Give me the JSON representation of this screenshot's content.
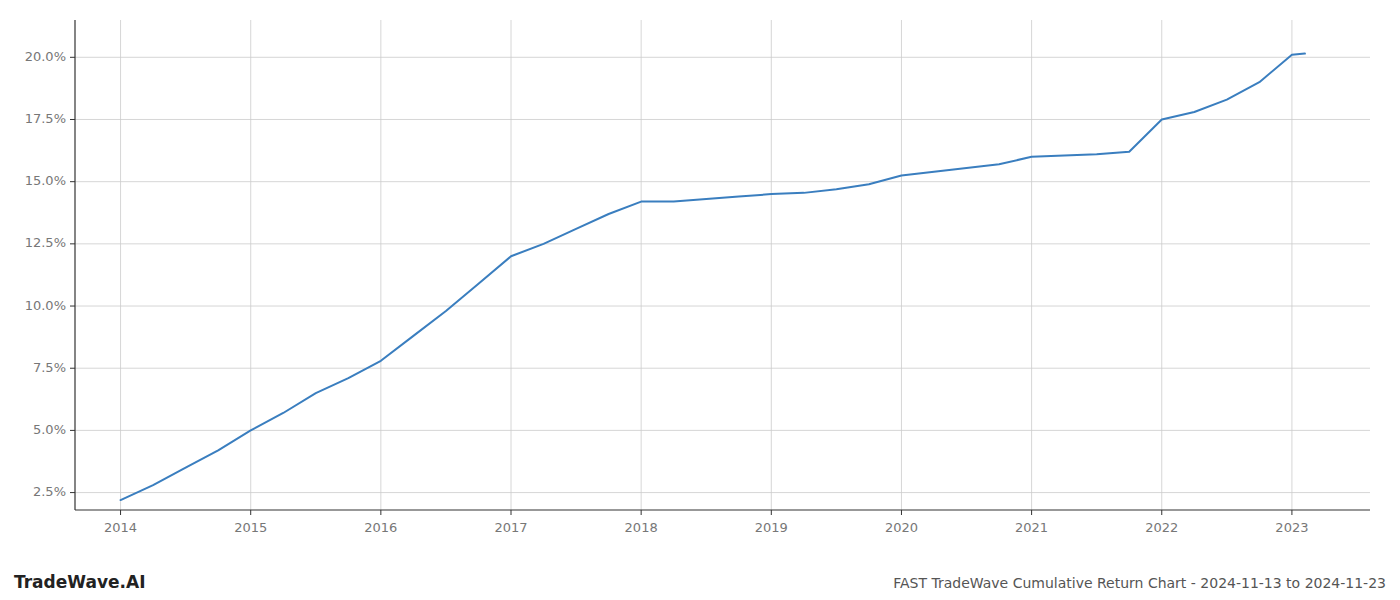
{
  "chart_data": {
    "type": "line",
    "title": "FAST TradeWave Cumulative Return Chart - 2024-11-13 to 2024-11-23",
    "annotations": [
      "TradeWave.AI"
    ],
    "x": [
      2014.0,
      2014.25,
      2014.5,
      2014.75,
      2015.0,
      2015.25,
      2015.5,
      2015.75,
      2016.0,
      2016.25,
      2016.5,
      2016.75,
      2017.0,
      2017.25,
      2017.5,
      2017.75,
      2018.0,
      2018.25,
      2018.5,
      2018.75,
      2019.0,
      2019.25,
      2019.5,
      2019.75,
      2020.0,
      2020.25,
      2020.5,
      2020.75,
      2021.0,
      2021.25,
      2021.5,
      2021.75,
      2022.0,
      2022.25,
      2022.5,
      2022.75,
      2023.0,
      2023.1
    ],
    "values": [
      2.2,
      2.8,
      3.5,
      4.2,
      5.0,
      5.7,
      6.5,
      7.1,
      7.8,
      8.8,
      9.8,
      10.9,
      12.0,
      12.5,
      13.1,
      13.7,
      14.2,
      14.2,
      14.3,
      14.4,
      14.5,
      14.55,
      14.7,
      14.9,
      15.25,
      15.4,
      15.55,
      15.7,
      16.0,
      16.05,
      16.1,
      16.2,
      17.5,
      17.8,
      18.3,
      19.0,
      20.1,
      20.15
    ],
    "color": "#3a7ebf",
    "xlim": [
      2013.65,
      2023.6
    ],
    "xticks": [
      2014,
      2015,
      2016,
      2017,
      2018,
      2019,
      2020,
      2021,
      2022,
      2023
    ],
    "ylim": [
      1.8,
      21.5
    ],
    "yticks": [
      {
        "value": 2.5,
        "label": "2.5%"
      },
      {
        "value": 5.0,
        "label": "5.0%"
      },
      {
        "value": 7.5,
        "label": "7.5%"
      },
      {
        "value": 10.0,
        "label": "10.0%"
      },
      {
        "value": 12.5,
        "label": "12.5%"
      },
      {
        "value": 15.0,
        "label": "15.0%"
      },
      {
        "value": 17.5,
        "label": "17.5%"
      },
      {
        "value": 20.0,
        "label": "20.0%"
      }
    ],
    "grid": true
  }
}
